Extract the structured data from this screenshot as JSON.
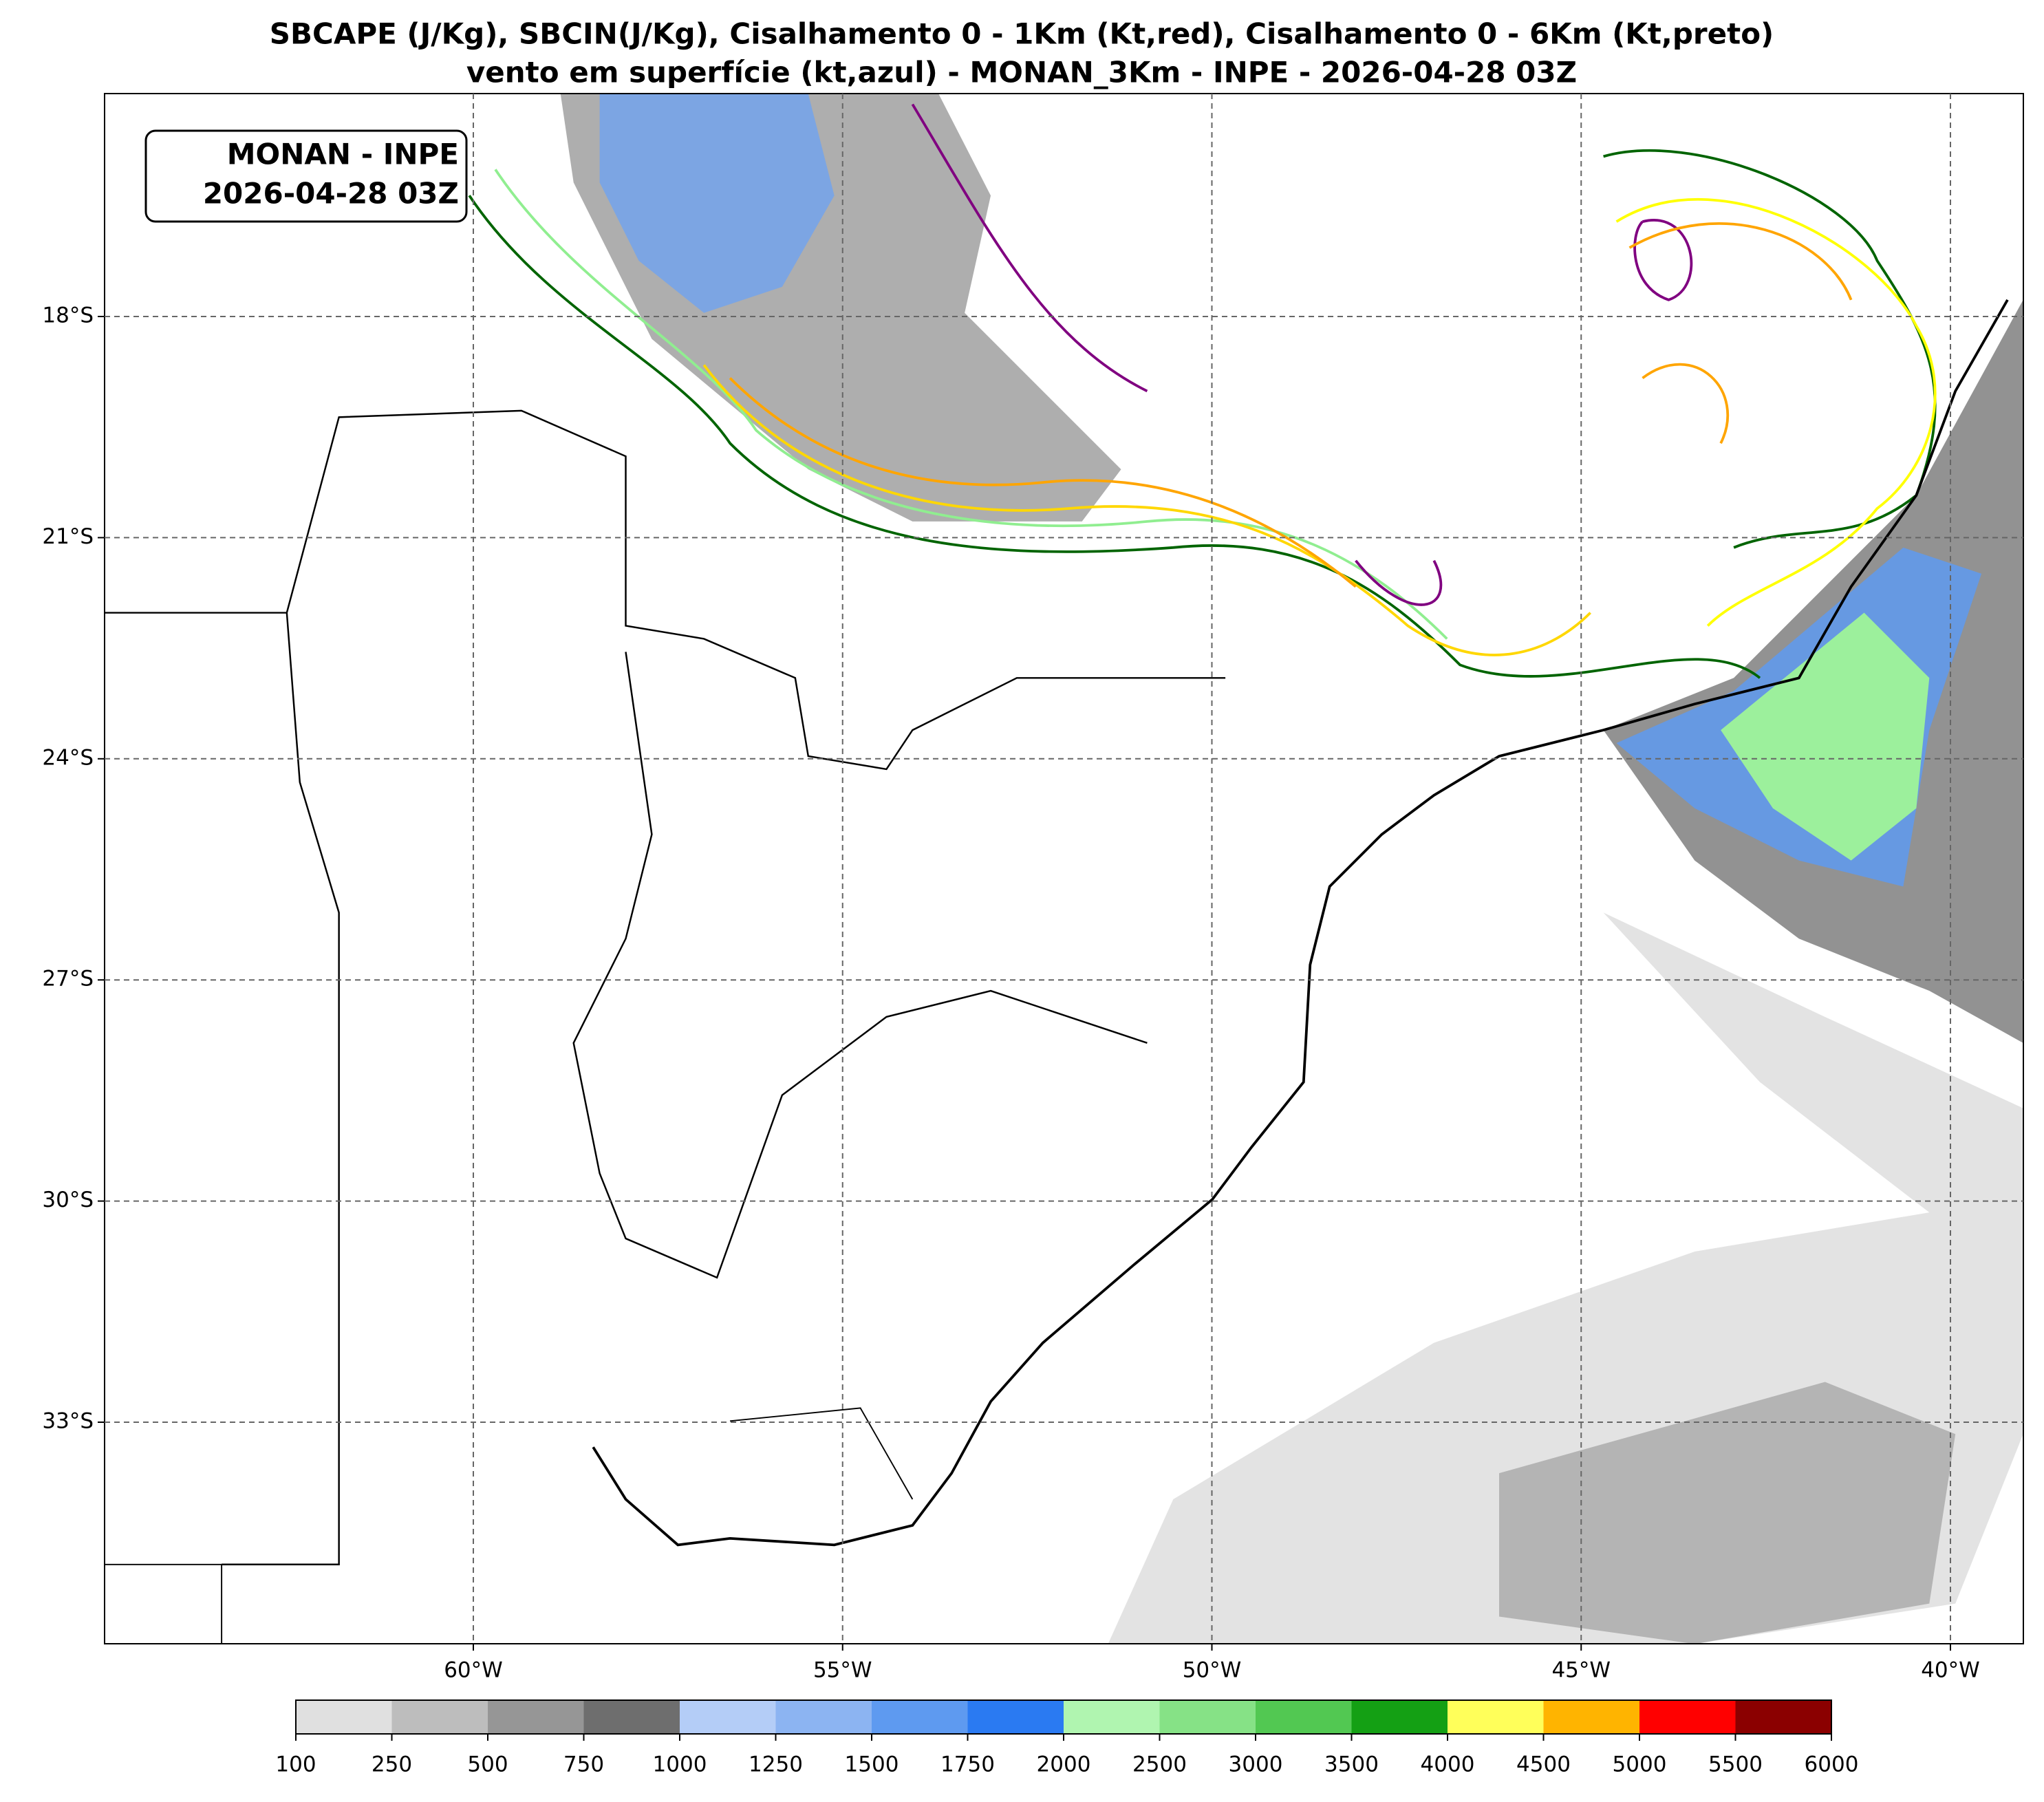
{
  "title": [
    "SBCAPE (J/Kg), SBCIN(J/Kg), Cisalhamento 0 - 1Km (Kt,red), Cisalhamento 0 - 6Km (Kt,preto)",
    "vento em superfície (kt,azul) - MONAN_3Km - INPE - 2026-04-28 03Z"
  ],
  "label_box": [
    "MONAN - INPE",
    "2026-04-28 03Z"
  ],
  "map": {
    "lon_ticks": [
      {
        "value": -60,
        "label": "60°W"
      },
      {
        "value": -55,
        "label": "55°W"
      },
      {
        "value": -50,
        "label": "50°W"
      },
      {
        "value": -45,
        "label": "45°W"
      },
      {
        "value": -40,
        "label": "40°W"
      }
    ],
    "lat_ticks": [
      {
        "value": -18,
        "label": "18°S"
      },
      {
        "value": -21,
        "label": "21°S"
      },
      {
        "value": -24,
        "label": "24°S"
      },
      {
        "value": -27,
        "label": "27°S"
      },
      {
        "value": -30,
        "label": "30°S"
      },
      {
        "value": -33,
        "label": "33°S"
      }
    ],
    "grid": true
  },
  "colorbar": {
    "ticks": [
      100,
      250,
      500,
      750,
      1000,
      1250,
      1500,
      1750,
      2000,
      2500,
      3000,
      3500,
      4000,
      4500,
      5000,
      5500,
      6000
    ],
    "colors": [
      "#e0e0e0",
      "#bdbdbd",
      "#969696",
      "#6e6e6e",
      "#b4cdf7",
      "#8cb4f2",
      "#5e9af0",
      "#2a7af2",
      "#b0f5b0",
      "#86e286",
      "#52c852",
      "#14a014",
      "#ffff5a",
      "#ffb400",
      "#ff0000",
      "#8b0000"
    ]
  }
}
